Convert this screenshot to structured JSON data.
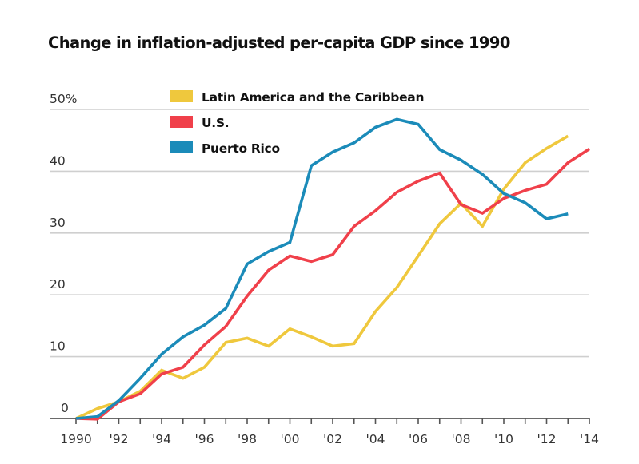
{
  "chart_data": {
    "type": "line",
    "title": "Change in inflation-adjusted per-capita GDP since 1990",
    "xlabel": "",
    "ylabel": "",
    "x": [
      1990,
      1991,
      1992,
      1993,
      1994,
      1995,
      1996,
      1997,
      1998,
      1999,
      2000,
      2001,
      2002,
      2003,
      2004,
      2005,
      2006,
      2007,
      2008,
      2009,
      2010,
      2011,
      2012,
      2013,
      2014
    ],
    "xlim": [
      1990,
      2014
    ],
    "ylim": [
      0,
      50
    ],
    "grid": true,
    "legend_position": "top-left",
    "yticks": [
      0,
      10,
      20,
      30,
      40,
      50
    ],
    "ytick_labels": [
      "0",
      "10",
      "20",
      "30",
      "40",
      "50%"
    ],
    "xticks": [
      1990,
      1991,
      1992,
      1993,
      1994,
      1995,
      1996,
      1997,
      1998,
      1999,
      2000,
      2001,
      2002,
      2003,
      2004,
      2005,
      2006,
      2007,
      2008,
      2009,
      2010,
      2011,
      2012,
      2013,
      2014
    ],
    "xtick_labels": [
      {
        "year": 1990,
        "label": "1990"
      },
      {
        "year": 1992,
        "label": "'92"
      },
      {
        "year": 1994,
        "label": "'94"
      },
      {
        "year": 1996,
        "label": "'96"
      },
      {
        "year": 1998,
        "label": "'98"
      },
      {
        "year": 2000,
        "label": "'00"
      },
      {
        "year": 2002,
        "label": "'02"
      },
      {
        "year": 2004,
        "label": "'04"
      },
      {
        "year": 2006,
        "label": "'06"
      },
      {
        "year": 2008,
        "label": "'08"
      },
      {
        "year": 2010,
        "label": "'10"
      },
      {
        "year": 2012,
        "label": "'12"
      },
      {
        "year": 2014,
        "label": "'14"
      }
    ],
    "series": [
      {
        "name": "Latin America and the Caribbean",
        "color": "#efc83d",
        "values": [
          0,
          1.6,
          2.7,
          4.4,
          7.8,
          6.5,
          8.3,
          12.3,
          13.0,
          11.7,
          14.5,
          13.2,
          11.7,
          12.1,
          17.3,
          21.2,
          26.3,
          31.5,
          34.8,
          31.1,
          37.1,
          41.4,
          43.7,
          45.7,
          null
        ]
      },
      {
        "name": "U.S.",
        "color": "#f0404a",
        "values": [
          0,
          -0.1,
          2.7,
          4.0,
          7.2,
          8.3,
          11.9,
          14.9,
          19.8,
          24.0,
          26.3,
          25.4,
          26.5,
          31.1,
          33.6,
          36.6,
          38.4,
          39.7,
          34.6,
          33.2,
          35.6,
          36.9,
          37.9,
          41.4,
          43.6
        ]
      },
      {
        "name": "Puerto Rico",
        "color": "#1b8bb9",
        "values": [
          0,
          0.3,
          2.9,
          6.5,
          10.4,
          13.2,
          15.1,
          17.8,
          25.0,
          27.0,
          28.5,
          40.9,
          43.1,
          44.6,
          47.1,
          48.4,
          47.6,
          43.5,
          41.8,
          39.5,
          36.4,
          34.9,
          32.3,
          33.1,
          null
        ]
      }
    ],
    "colors": {
      "gridline": "#cfcfcf",
      "axis": "#555555"
    }
  }
}
